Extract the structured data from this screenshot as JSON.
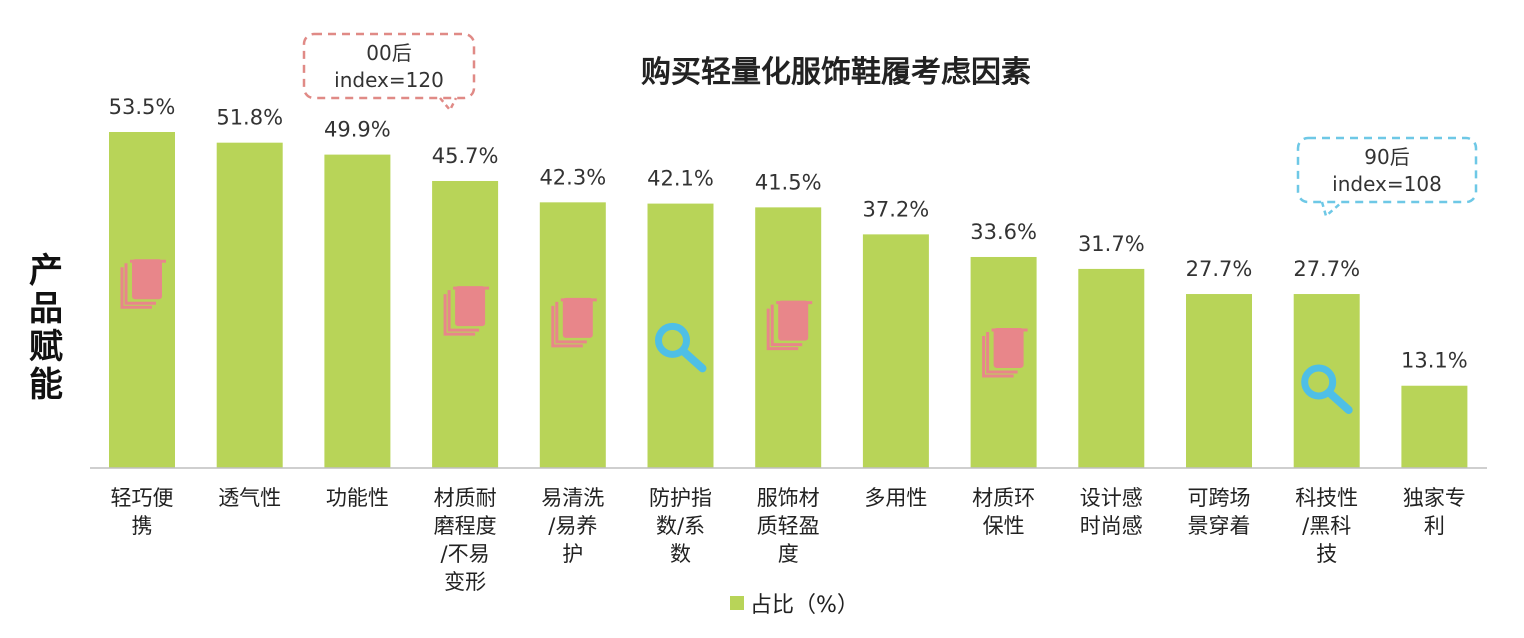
{
  "side_label": [
    "产",
    "品",
    "赋",
    "能"
  ],
  "legend": {
    "label": "占比（%）"
  },
  "callouts": [
    {
      "line1": "00后",
      "line2": "index=120",
      "color": "#e08a86"
    },
    {
      "line1": "90后",
      "line2": "index=108",
      "color": "#6ec8e6"
    }
  ],
  "colors": {
    "bar": "#b8d458",
    "note_icon": "#e8868a",
    "search_icon": "#4ebfe6",
    "axis": "#bfbfbf"
  },
  "chart_data": {
    "type": "bar",
    "title": "购买轻量化服饰鞋履考虑因素",
    "categories": [
      [
        "轻巧便",
        "携"
      ],
      [
        "透气性"
      ],
      [
        "功能性"
      ],
      [
        "材质耐",
        "磨程度",
        "/不易",
        "变形"
      ],
      [
        "易清洗",
        "/易养",
        "护"
      ],
      [
        "防护指",
        "数/系",
        "数"
      ],
      [
        "服饰材",
        "质轻盈",
        "度"
      ],
      [
        "多用性"
      ],
      [
        "材质环",
        "保性"
      ],
      [
        "设计感",
        "时尚感"
      ],
      [
        "可跨场",
        "景穿着"
      ],
      [
        "科技性",
        "/黑科",
        "技"
      ],
      [
        "独家专",
        "利"
      ]
    ],
    "series": [
      {
        "name": "占比（%）",
        "values": [
          53.5,
          51.8,
          49.9,
          45.7,
          42.3,
          42.1,
          41.5,
          37.2,
          33.6,
          31.7,
          27.7,
          27.7,
          13.1
        ]
      }
    ],
    "value_labels": [
      "53.5%",
      "51.8%",
      "49.9%",
      "45.7%",
      "42.3%",
      "42.1%",
      "41.5%",
      "37.2%",
      "33.6%",
      "31.7%",
      "27.7%",
      "27.7%",
      "13.1%"
    ],
    "icons": [
      "note-icon",
      "none",
      "none",
      "note-icon",
      "note-icon",
      "search-icon",
      "note-icon",
      "none",
      "note-icon",
      "none",
      "none",
      "search-icon",
      "none"
    ],
    "ylim": [
      0,
      60
    ],
    "grid": false,
    "legend_position": "bottom"
  }
}
